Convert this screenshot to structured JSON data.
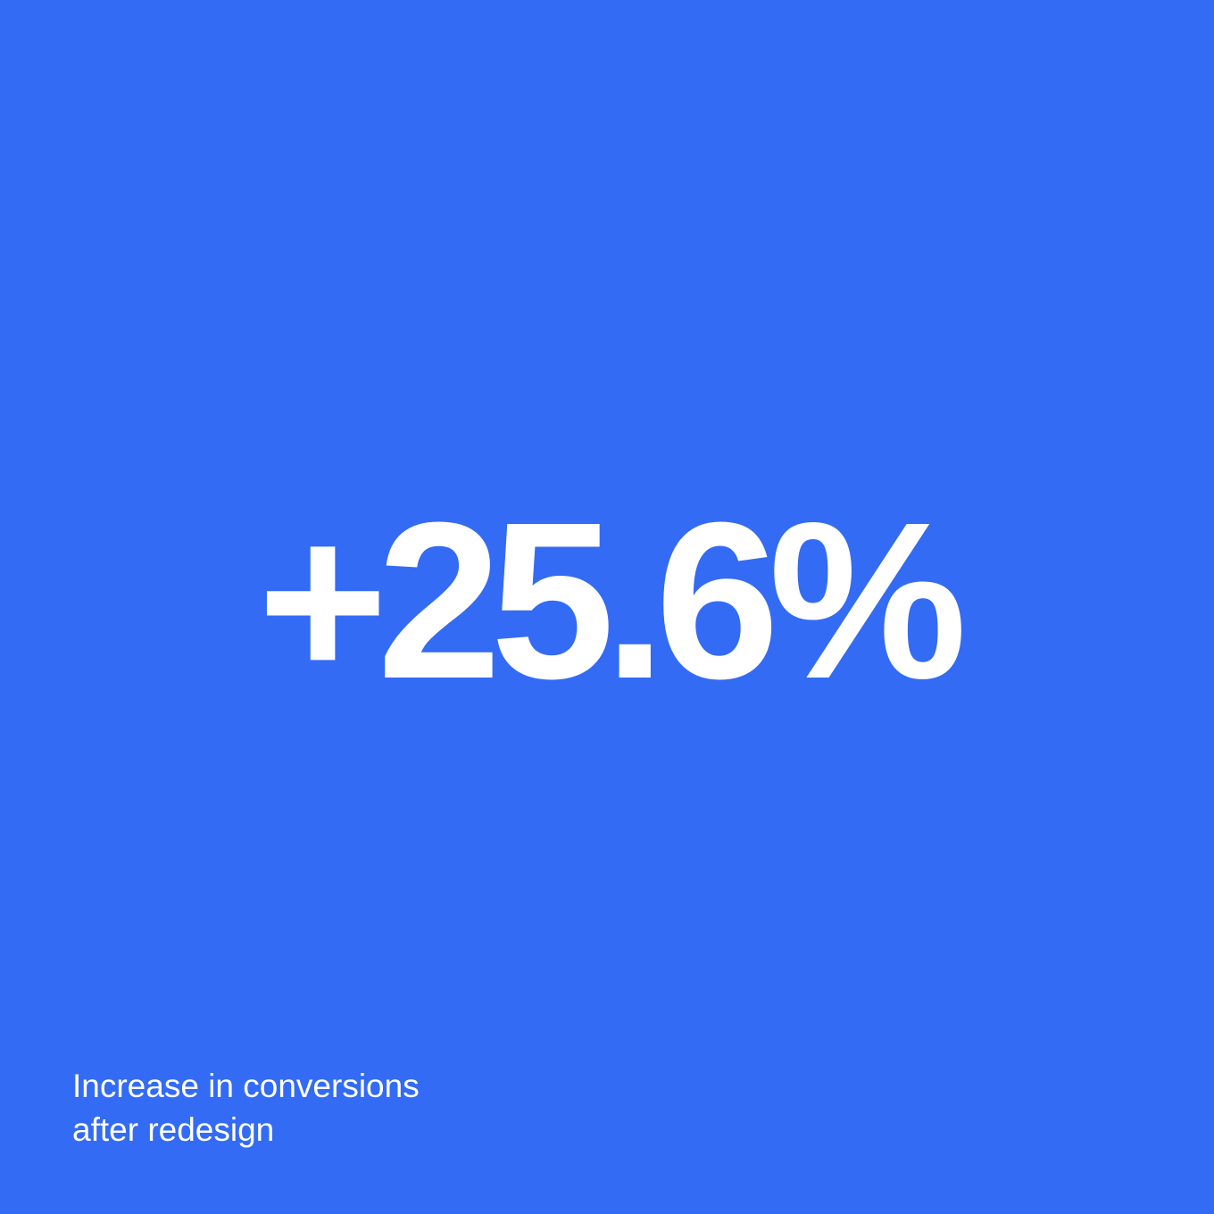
{
  "stat": {
    "value": "+25.6%"
  },
  "caption": {
    "line1": "Increase in conversions",
    "line2": "after redesign"
  },
  "colors": {
    "background": "#336BF5",
    "text": "#FFFFFF"
  }
}
